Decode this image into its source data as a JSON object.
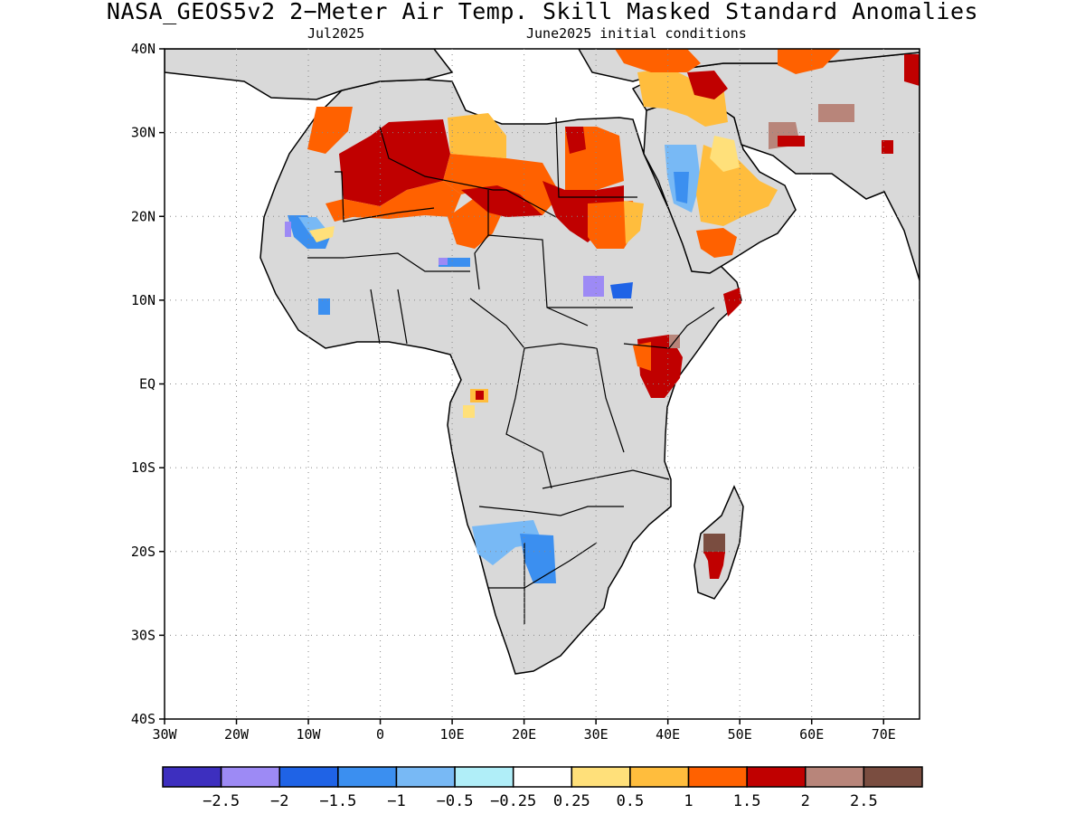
{
  "title": "NASA_GEOS5v2 2−Meter Air Temp. Skill Masked Standard Anomalies",
  "subtitle_left": "Jul2025",
  "subtitle_right": "June2025 initial conditions",
  "map": {
    "lon_range": [
      -30,
      75
    ],
    "lat_range": [
      -40,
      40
    ],
    "grid": "dotted",
    "land_color": "#d9d9d9",
    "ocean_color": "#ffffff",
    "lat_ticks": [
      {
        "lat": 40,
        "label": "40N"
      },
      {
        "lat": 30,
        "label": "30N"
      },
      {
        "lat": 20,
        "label": "20N"
      },
      {
        "lat": 10,
        "label": "10N"
      },
      {
        "lat": 0,
        "label": "EQ"
      },
      {
        "lat": -10,
        "label": "10S"
      },
      {
        "lat": -20,
        "label": "20S"
      },
      {
        "lat": -30,
        "label": "30S"
      },
      {
        "lat": -40,
        "label": "40S"
      }
    ],
    "lon_ticks": [
      {
        "lon": -30,
        "label": "30W"
      },
      {
        "lon": -20,
        "label": "20W"
      },
      {
        "lon": -10,
        "label": "10W"
      },
      {
        "lon": 0,
        "label": "0"
      },
      {
        "lon": 10,
        "label": "10E"
      },
      {
        "lon": 20,
        "label": "20E"
      },
      {
        "lon": 30,
        "label": "30E"
      },
      {
        "lon": 40,
        "label": "40E"
      },
      {
        "lon": 50,
        "label": "50E"
      },
      {
        "lon": 60,
        "label": "60E"
      },
      {
        "lon": 70,
        "label": "70E"
      }
    ]
  },
  "colorbar": {
    "colors": [
      "#3d2fbf",
      "#9d8af5",
      "#1f63e6",
      "#3b8ff0",
      "#78b9f5",
      "#b0eef8",
      "#ffffff",
      "#ffe07a",
      "#ffbd3d",
      "#ff6100",
      "#c00000",
      "#b8857a",
      "#7a4d40"
    ],
    "labels": [
      "−2.5",
      "−2",
      "−1.5",
      "−1",
      "−0.5",
      "−0.25",
      "0.25",
      "0.5",
      "1",
      "1.5",
      "2",
      "2.5"
    ]
  }
}
